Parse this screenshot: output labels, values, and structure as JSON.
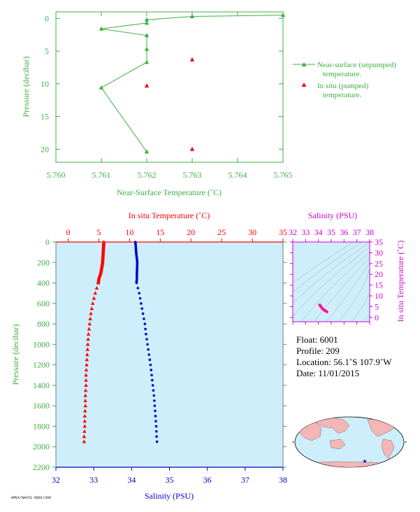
{
  "colors": {
    "green": "#3cb043",
    "red": "#ff0000",
    "blue": "#0000cc",
    "magenta": "#cc00cc",
    "panel_bg": "#cdeefa",
    "land": "#f4b6b6"
  },
  "chart_data": [
    {
      "type": "line",
      "id": "near-surface",
      "xlabel": "Near-Surface Temperature (˚C)",
      "ylabel": "Pressure (decibar)",
      "xlim": [
        5.76,
        5.765
      ],
      "ylim": [
        22,
        -1
      ],
      "x_ticks": [
        "5.760",
        "5.761",
        "5.762",
        "5.763",
        "5.764",
        "5.765"
      ],
      "y_ticks": [
        "0",
        "5",
        "10",
        "15",
        "20"
      ],
      "series": [
        {
          "name": "Near-surface (unpumped) temperature.",
          "color": "#3cb043",
          "x": [
            5.765,
            5.763,
            5.762,
            5.762,
            5.761,
            5.762,
            5.762,
            5.762,
            5.761,
            5.762
          ],
          "y": [
            -0.5,
            -0.3,
            0.2,
            0.7,
            1.6,
            2.6,
            4.7,
            6.7,
            10.6,
            20.4
          ]
        },
        {
          "name": "In situ (pumped) temperature.",
          "color": "#ff0000",
          "x": [
            5.763,
            5.762,
            5.763
          ],
          "y": [
            6.3,
            10.3,
            20.0
          ]
        }
      ],
      "legend": [
        {
          "line1": "Near-surface (unpumped)",
          "line2": "temperature."
        },
        {
          "line1": "In situ (pumped)",
          "line2": "temperature."
        }
      ]
    },
    {
      "type": "line",
      "id": "profile",
      "top_xlabel": "In situ Temperature (˚C)",
      "bottom_xlabel": "Salinity (PSU)",
      "ylabel": "Pressure (decibar)",
      "temp_lim": [
        -2,
        35
      ],
      "sal_lim": [
        32,
        38
      ],
      "ylim": [
        2200,
        0
      ],
      "temp_ticks": [
        "0",
        "5",
        "10",
        "15",
        "20",
        "25",
        "30",
        "35"
      ],
      "sal_ticks": [
        "32",
        "33",
        "34",
        "35",
        "36",
        "37",
        "38"
      ],
      "y_ticks": [
        "0",
        "200",
        "400",
        "600",
        "800",
        "1000",
        "1200",
        "1400",
        "1600",
        "1800",
        "2000",
        "2200"
      ],
      "temperature": {
        "pressure": [
          0,
          100,
          200,
          300,
          350,
          400,
          500,
          600,
          700,
          800,
          900,
          1000,
          1100,
          1200,
          1300,
          1400,
          1500,
          1600,
          1700,
          1800,
          1900,
          1950
        ],
        "values": [
          5.8,
          5.7,
          5.6,
          5.3,
          5.0,
          4.9,
          4.4,
          4.0,
          3.7,
          3.5,
          3.3,
          3.2,
          3.1,
          3.0,
          2.9,
          2.9,
          2.8,
          2.8,
          2.7,
          2.7,
          2.6,
          2.6
        ]
      },
      "salinity": {
        "pressure": [
          0,
          100,
          200,
          300,
          350,
          400,
          500,
          600,
          700,
          800,
          900,
          1000,
          1100,
          1200,
          1300,
          1400,
          1500,
          1600,
          1700,
          1800,
          1900,
          1950
        ],
        "values": [
          34.1,
          34.12,
          34.15,
          34.14,
          34.14,
          34.13,
          34.2,
          34.25,
          34.3,
          34.35,
          34.38,
          34.42,
          34.46,
          34.5,
          34.53,
          34.56,
          34.59,
          34.61,
          34.63,
          34.65,
          34.66,
          34.67
        ]
      }
    },
    {
      "type": "scatter",
      "id": "ts-diagram",
      "title": "Salinity (PSU)",
      "ylabel": "In situ Temperature (˚C)",
      "xlim": [
        32,
        38
      ],
      "ylim": [
        -2,
        35
      ],
      "x_ticks": [
        "32",
        "33",
        "34",
        "35",
        "36",
        "37",
        "38"
      ],
      "y_ticks": [
        "0",
        "5",
        "10",
        "15",
        "20",
        "25",
        "30",
        "35"
      ],
      "points": {
        "x": [
          34.1,
          34.2,
          34.3,
          34.45,
          34.6,
          34.67
        ],
        "y": [
          5.8,
          5.0,
          4.2,
          3.4,
          2.9,
          2.6
        ]
      }
    }
  ],
  "info": {
    "float": "Float:  6001",
    "profile": "Profile:  209",
    "location": "Location:  56.1˚S  107.9˚W",
    "date": "Date:  11/01/2015"
  },
  "footer_id": "APEX/NAVIS 6001/209"
}
